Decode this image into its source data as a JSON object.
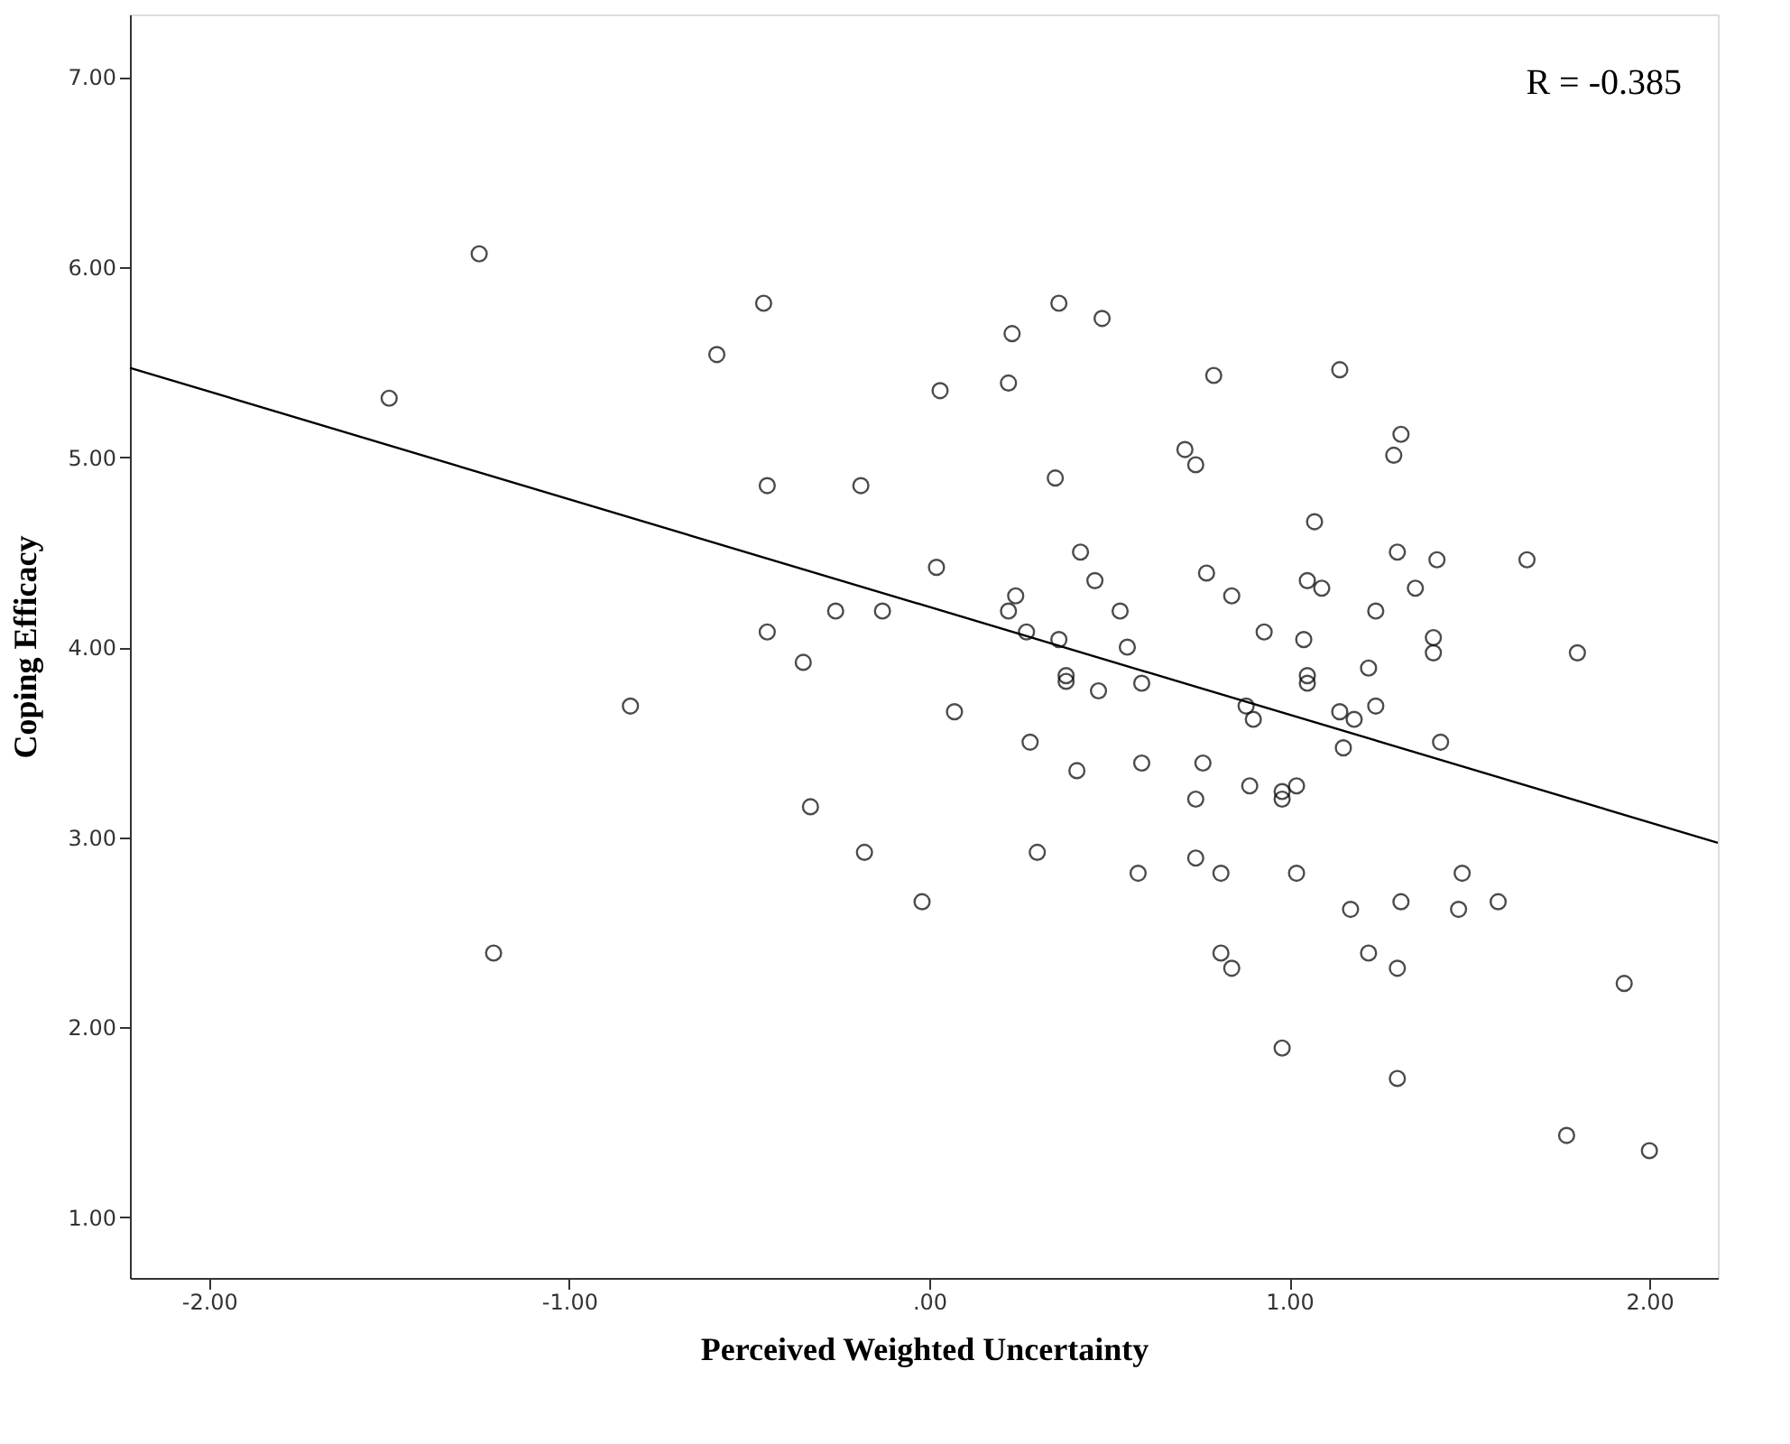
{
  "chart_data": {
    "type": "scatter",
    "xlabel": "Perceived Weighted Uncertainty",
    "ylabel": "Coping Efficacy",
    "annotations": [
      "R = -0.385"
    ],
    "xlim": [
      -2.22,
      2.19
    ],
    "ylim": [
      0.68,
      7.33
    ],
    "xticks": [
      {
        "value": -2,
        "label": "-2.00"
      },
      {
        "value": -1,
        "label": "-1.00"
      },
      {
        "value": 0,
        "label": ".00"
      },
      {
        "value": 1,
        "label": "1.00"
      },
      {
        "value": 2,
        "label": "2.00"
      }
    ],
    "yticks": [
      {
        "value": 1,
        "label": "1.00"
      },
      {
        "value": 2,
        "label": "2.00"
      },
      {
        "value": 3,
        "label": "3.00"
      },
      {
        "value": 4,
        "label": "4.00"
      },
      {
        "value": 5,
        "label": "5.00"
      },
      {
        "value": 6,
        "label": "6.00"
      },
      {
        "value": 7,
        "label": "7.00"
      }
    ],
    "grid": false,
    "series": [
      {
        "marker": "circle",
        "color": "#000000",
        "x": [
          -1.5,
          -1.25,
          -0.83,
          -0.59,
          -1.21,
          -0.46,
          0.03,
          0.23,
          0.22,
          0.36,
          0.48,
          0.79,
          -0.45,
          -0.19,
          0.35,
          0.71,
          0.74,
          0.02,
          0.42,
          0.46,
          0.77,
          -0.26,
          -0.13,
          -0.45,
          -0.35,
          0.24,
          0.22,
          0.27,
          0.36,
          0.53,
          0.55,
          0.38,
          0.38,
          0.47,
          0.59,
          0.07,
          0.28,
          0.41,
          0.59,
          0.76,
          0.74,
          -0.33,
          -0.18,
          0.3,
          -0.02,
          0.58,
          0.74,
          0.88,
          0.9,
          1.05,
          1.05,
          1.22,
          1.14,
          1.18,
          1.24,
          1.15,
          1.42,
          0.89,
          1.02,
          0.98,
          0.98,
          0.81,
          1.02,
          1.17,
          1.31,
          1.48,
          1.47,
          1.58,
          0.81,
          0.84,
          1.22,
          1.3,
          1.93,
          0.98,
          1.3,
          1.77,
          2.0,
          1.14,
          1.31,
          1.29,
          1.07,
          1.3,
          1.41,
          1.66,
          0.84,
          1.05,
          1.09,
          1.35,
          1.24,
          0.93,
          1.04,
          1.4,
          1.4,
          1.8
        ],
        "values": [
          5.31,
          6.07,
          3.69,
          5.54,
          2.39,
          5.81,
          5.35,
          5.65,
          5.39,
          5.81,
          5.73,
          5.43,
          4.85,
          4.85,
          4.89,
          5.04,
          4.96,
          4.42,
          4.5,
          4.35,
          4.39,
          4.19,
          4.19,
          4.08,
          3.92,
          4.27,
          4.19,
          4.08,
          4.04,
          4.19,
          4.0,
          3.85,
          3.82,
          3.77,
          3.81,
          3.66,
          3.5,
          3.35,
          3.39,
          3.39,
          3.2,
          3.16,
          2.92,
          2.92,
          2.66,
          2.81,
          2.89,
          3.69,
          3.62,
          3.85,
          3.81,
          3.89,
          3.66,
          3.62,
          3.69,
          3.47,
          3.5,
          3.27,
          3.27,
          3.24,
          3.2,
          2.81,
          2.81,
          2.62,
          2.66,
          2.81,
          2.62,
          2.66,
          2.39,
          2.31,
          2.39,
          2.31,
          2.23,
          1.89,
          1.73,
          1.43,
          1.35,
          5.46,
          5.12,
          5.01,
          4.66,
          4.5,
          4.46,
          4.46,
          4.27,
          4.35,
          4.31,
          4.31,
          4.19,
          4.08,
          4.04,
          4.05,
          3.97,
          3.97
        ]
      },
      {
        "type": "line",
        "marker": "none",
        "color": "#000000",
        "line_style": "solid",
        "x": [
          -2.22,
          2.19
        ],
        "values": [
          5.47,
          2.97
        ]
      }
    ]
  }
}
